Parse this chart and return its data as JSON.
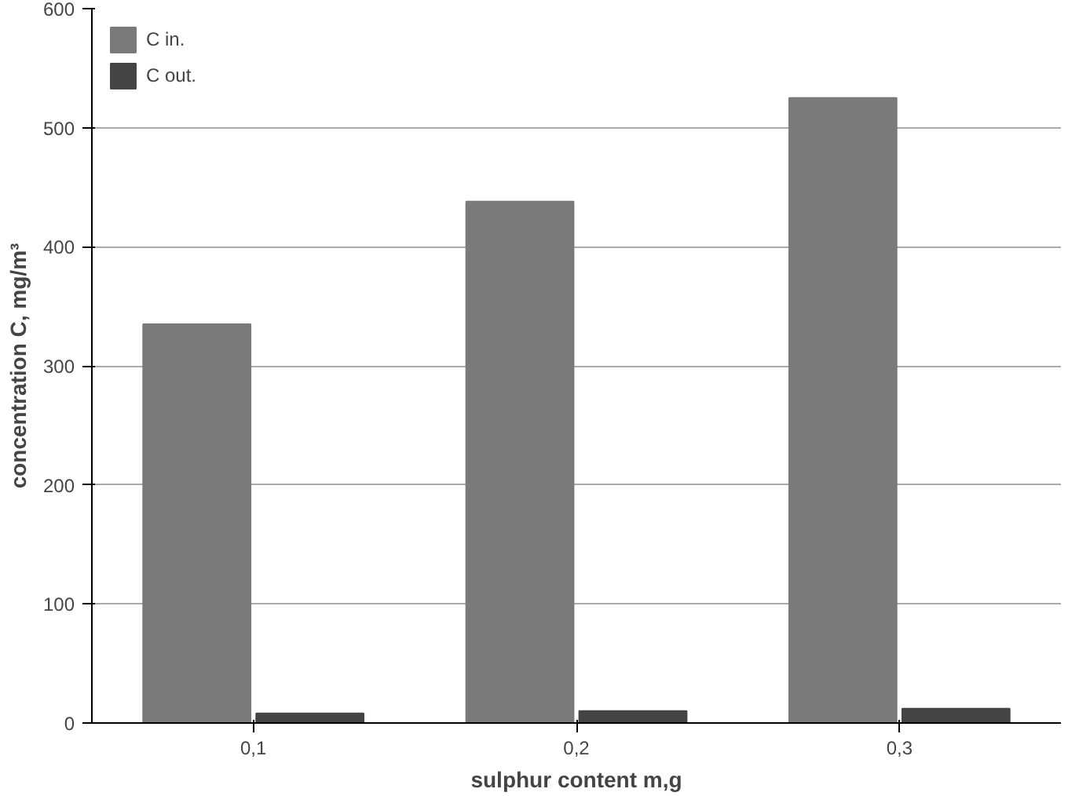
{
  "chart_data": {
    "type": "bar",
    "xlabel": "sulphur content m,g",
    "ylabel": "concentration C, mg/m³",
    "categories": [
      "0,1",
      "0,2",
      "0,3"
    ],
    "series": [
      {
        "name": "C in.",
        "color": "#7a7a7a",
        "values": [
          335,
          438,
          525
        ]
      },
      {
        "name": "C out.",
        "color": "#444444",
        "values": [
          8,
          10,
          12
        ]
      }
    ],
    "ylim": [
      0,
      600
    ],
    "yticks": [
      0,
      100,
      200,
      300,
      400,
      500,
      600
    ],
    "grid": "y",
    "legend": "top left"
  }
}
